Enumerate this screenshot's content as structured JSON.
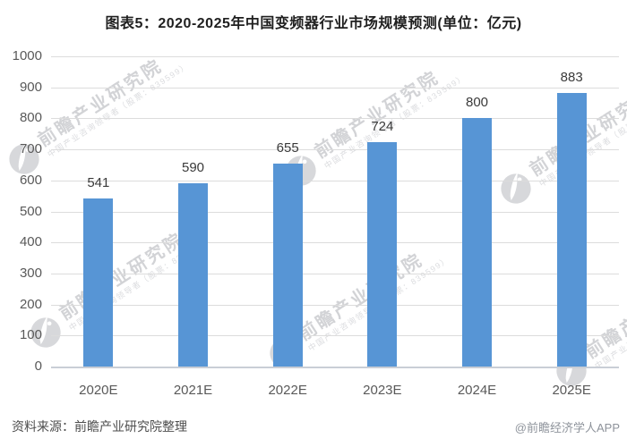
{
  "page": {
    "title": "图表5：2020-2025年中国变频器行业市场规模预测(单位：亿元)"
  },
  "chart_data": {
    "type": "bar",
    "title": "图表5：2020-2025年中国变频器行业市场规模预测(单位：亿元)",
    "unit_label": "亿元",
    "categories": [
      "2020E",
      "2021E",
      "2022E",
      "2023E",
      "2024E",
      "2025E"
    ],
    "values": [
      541,
      590,
      655,
      724,
      800,
      883
    ],
    "xlabel": "",
    "ylabel": "",
    "ylim": [
      0,
      1000
    ],
    "ytick_step": 100,
    "grid": true,
    "legend": false,
    "bar_color": "#5795D5",
    "value_labels_shown": true
  },
  "footer": {
    "source": "资料来源：前瞻产业研究院整理",
    "brand": "@前瞻经济学人APP"
  },
  "watermark": {
    "main": "前瞻产业研究院",
    "sub": "中国产业咨询领导者（股票：839599）"
  },
  "colors": {
    "bar": "#5795D5",
    "gridline": "#dcdcdc",
    "axis_line": "#c9ced6",
    "tick_text": "#595959",
    "value_text": "#3a3a3a",
    "title_text": "#1f1f1f",
    "source_text": "#4d4d4d",
    "brand_text": "#8e939b",
    "watermark_text": "#d2d3d6"
  }
}
